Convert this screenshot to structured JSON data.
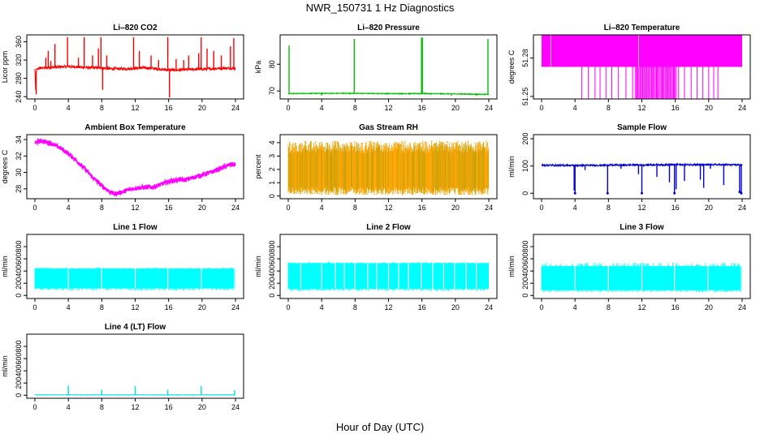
{
  "title": "NWR_150731  1 Hz Diagnostics",
  "xlabel": "Hour of Day (UTC)",
  "chart_data": [
    {
      "id": "co2",
      "type": "line",
      "title": "Li–820 CO2",
      "ylabel": "Licor ppm",
      "color": "#ff0000",
      "xlim": [
        0,
        24
      ],
      "ylim": [
        235,
        375
      ],
      "xticks": [
        "0",
        "4",
        "8",
        "12",
        "16",
        "20",
        "24"
      ],
      "yticks": [
        "240",
        "280",
        "320",
        "360"
      ],
      "x": [
        0,
        0.1,
        0.15,
        0.2,
        0.5,
        1,
        2,
        3,
        4,
        5,
        6,
        7,
        8,
        9,
        10,
        11,
        12,
        13,
        14,
        15,
        16,
        17,
        18,
        19,
        20,
        21,
        22,
        23,
        24
      ],
      "y": [
        300,
        245,
        295,
        298,
        302,
        303,
        304,
        305,
        306,
        305,
        304,
        303,
        303,
        301,
        301,
        301,
        302,
        303,
        302,
        300,
        298,
        298,
        299,
        300,
        300,
        301,
        302,
        302,
        302
      ],
      "spikes": [
        {
          "x": 0.15,
          "y": 245
        },
        {
          "x": 1.3,
          "y": 325
        },
        {
          "x": 1.6,
          "y": 340
        },
        {
          "x": 1.9,
          "y": 318
        },
        {
          "x": 2.4,
          "y": 355
        },
        {
          "x": 3.9,
          "y": 370
        },
        {
          "x": 5.2,
          "y": 325
        },
        {
          "x": 5.9,
          "y": 370
        },
        {
          "x": 6.9,
          "y": 330
        },
        {
          "x": 7.6,
          "y": 345
        },
        {
          "x": 7.9,
          "y": 370
        },
        {
          "x": 8.1,
          "y": 255
        },
        {
          "x": 8.6,
          "y": 330
        },
        {
          "x": 11.8,
          "y": 370
        },
        {
          "x": 12.5,
          "y": 340
        },
        {
          "x": 13.9,
          "y": 330
        },
        {
          "x": 14.8,
          "y": 320
        },
        {
          "x": 15.9,
          "y": 370
        },
        {
          "x": 16.1,
          "y": 238
        },
        {
          "x": 16.9,
          "y": 322
        },
        {
          "x": 17.8,
          "y": 320
        },
        {
          "x": 18.4,
          "y": 330
        },
        {
          "x": 19.6,
          "y": 335
        },
        {
          "x": 19.9,
          "y": 370
        },
        {
          "x": 20.6,
          "y": 345
        },
        {
          "x": 21.4,
          "y": 340
        },
        {
          "x": 22.3,
          "y": 330
        },
        {
          "x": 23.4,
          "y": 350
        },
        {
          "x": 23.8,
          "y": 368
        }
      ]
    },
    {
      "id": "pressure",
      "type": "line",
      "title": "Li–820 Pressure",
      "ylabel": "kPa",
      "color": "#00c000",
      "xlim": [
        0,
        24
      ],
      "ylim": [
        67,
        91
      ],
      "xticks": [
        "0",
        "4",
        "8",
        "12",
        "16",
        "20",
        "24"
      ],
      "yticks": [
        "70",
        "80"
      ],
      "x": [
        0,
        0.3,
        4,
        8,
        12,
        16,
        20,
        22,
        24
      ],
      "y": [
        69,
        69,
        69.1,
        69.1,
        69,
        69,
        68.9,
        68.8,
        68.7
      ],
      "spikes": [
        {
          "x": 0.1,
          "y": 87
        },
        {
          "x": 7.9,
          "y": 89.5
        },
        {
          "x": 15.95,
          "y": 90
        },
        {
          "x": 16.05,
          "y": 90
        },
        {
          "x": 23.9,
          "y": 89.5
        },
        {
          "x": 4,
          "y": 68.3
        },
        {
          "x": 19.5,
          "y": 68.2
        },
        {
          "x": 22.5,
          "y": 68.1
        }
      ]
    },
    {
      "id": "temperature",
      "type": "area",
      "title": "Li–820 Temperature",
      "ylabel": "degrees C",
      "color": "#ff00ff",
      "xlim": [
        0,
        24
      ],
      "ylim": [
        51.248,
        51.298
      ],
      "xticks": [
        "0",
        "4",
        "8",
        "12",
        "16",
        "20",
        "24"
      ],
      "yticks": [
        "51.25",
        "51.28"
      ],
      "band": [
        51.273,
        51.298
      ],
      "drops": [
        4.8,
        5.6,
        6.4,
        7.0,
        7.7,
        8.4,
        9.2,
        10.1,
        10.9,
        11.5,
        12.1,
        12.6,
        13.2,
        13.8,
        14.5,
        15.1,
        15.8,
        16.4,
        17.1,
        17.9,
        18.6,
        19.3,
        20.0,
        20.6,
        21.1
      ],
      "gaps": [
        1.1,
        11.6
      ]
    },
    {
      "id": "ambient",
      "type": "line",
      "title": "Ambient Box Temperature",
      "ylabel": "degrees C",
      "color": "#ff00ff",
      "xlim": [
        0,
        24
      ],
      "ylim": [
        26.8,
        34.6
      ],
      "xticks": [
        "0",
        "4",
        "8",
        "12",
        "16",
        "20",
        "24"
      ],
      "yticks": [
        "28",
        "30",
        "32",
        "34"
      ],
      "x": [
        0,
        0.5,
        1,
        2,
        3,
        4,
        5,
        6,
        7,
        8,
        9,
        9.5,
        10,
        11,
        12,
        13,
        14,
        15,
        16,
        17,
        18,
        19,
        20,
        21,
        22,
        23,
        23.5,
        24
      ],
      "y": [
        33.6,
        33.8,
        33.8,
        33.5,
        33,
        32.3,
        31.4,
        30.4,
        29.3,
        28.4,
        27.6,
        27.4,
        27.5,
        27.8,
        28.1,
        28.2,
        28.2,
        28.5,
        28.9,
        29.1,
        29.1,
        29.4,
        29.7,
        30.0,
        30.4,
        30.8,
        31.0,
        30.9
      ]
    },
    {
      "id": "rh",
      "type": "area",
      "title": "Gas Stream RH",
      "ylabel": "percent",
      "color": "#ffa500",
      "color2": "#c8a000",
      "xlim": [
        0,
        24
      ],
      "ylim": [
        -0.2,
        4.6
      ],
      "xticks": [
        "0",
        "4",
        "8",
        "12",
        "16",
        "20",
        "24"
      ],
      "yticks": [
        "0",
        "1",
        "2",
        "3",
        "4"
      ],
      "band": [
        0.1,
        4.1
      ]
    },
    {
      "id": "sample",
      "type": "line",
      "title": "Sample Flow",
      "ylabel": "ml/min",
      "color": "#0000cc",
      "xlim": [
        0,
        24
      ],
      "ylim": [
        -20,
        215
      ],
      "xticks": [
        "0",
        "4",
        "8",
        "12",
        "16",
        "20",
        "24"
      ],
      "yticks": [
        "0",
        "100",
        "200"
      ],
      "x": [
        0,
        4,
        8,
        12,
        16,
        20,
        24
      ],
      "y": [
        103,
        102,
        103,
        104,
        105,
        105,
        104
      ],
      "spikes": [
        {
          "x": 3.9,
          "y": 10
        },
        {
          "x": 4.0,
          "y": 0
        },
        {
          "x": 5.2,
          "y": 85
        },
        {
          "x": 7.9,
          "y": 0
        },
        {
          "x": 9.5,
          "y": 90
        },
        {
          "x": 11.6,
          "y": 70
        },
        {
          "x": 12.0,
          "y": 0
        },
        {
          "x": 13.8,
          "y": 60
        },
        {
          "x": 15.3,
          "y": 40
        },
        {
          "x": 15.9,
          "y": 0
        },
        {
          "x": 16.1,
          "y": 15
        },
        {
          "x": 17.1,
          "y": 45
        },
        {
          "x": 19.0,
          "y": 50
        },
        {
          "x": 19.4,
          "y": 20
        },
        {
          "x": 20.2,
          "y": 90
        },
        {
          "x": 21.8,
          "y": 30
        },
        {
          "x": 23.7,
          "y": 5
        },
        {
          "x": 23.9,
          "y": 0
        }
      ]
    },
    {
      "id": "line1",
      "type": "area",
      "title": "Line 1 Flow",
      "ylabel": "ml/min",
      "color": "#00ffff",
      "xlim": [
        0,
        24
      ],
      "ylim": [
        -50,
        1000
      ],
      "xticks": [
        "0",
        "4",
        "8",
        "12",
        "16",
        "20",
        "24"
      ],
      "yticks": [
        "0",
        "200",
        "400",
        "600",
        "800"
      ],
      "band": [
        120,
        440
      ],
      "gaps": [
        4.0,
        8.0,
        12.0,
        15.9,
        19.9,
        23.9
      ]
    },
    {
      "id": "line2",
      "type": "area",
      "title": "Line 2 Flow",
      "ylabel": "ml/min",
      "color": "#00ffff",
      "xlim": [
        0,
        24
      ],
      "ylim": [
        -50,
        1000
      ],
      "xticks": [
        "0",
        "4",
        "8",
        "12",
        "16",
        "20",
        "24"
      ],
      "yticks": [
        "0",
        "200",
        "400",
        "600",
        "800"
      ],
      "band": [
        110,
        530
      ],
      "gaps": [
        1.5,
        4.0,
        5.6,
        6.7,
        8.0,
        9.5,
        10.6,
        12.0,
        13.2,
        14.4,
        15.9,
        17.3,
        18.6,
        19.9,
        21.3,
        22.5
      ]
    },
    {
      "id": "line3",
      "type": "area",
      "title": "Line 3 Flow",
      "ylabel": "ml/min",
      "color": "#00ffff",
      "xlim": [
        0,
        24
      ],
      "ylim": [
        -50,
        1000
      ],
      "xticks": [
        "0",
        "4",
        "8",
        "12",
        "16",
        "20",
        "24"
      ],
      "yticks": [
        "0",
        "200",
        "400",
        "600",
        "800"
      ],
      "band": [
        90,
        480
      ],
      "gaps": [
        4.0,
        8.0,
        12.0,
        15.9,
        19.9,
        23.9
      ]
    },
    {
      "id": "line4",
      "type": "line",
      "title": "Line 4 (LT) Flow",
      "ylabel": "ml/min",
      "color": "#00dddd",
      "xlim": [
        0,
        24
      ],
      "ylim": [
        -50,
        1000
      ],
      "xticks": [
        "0",
        "4",
        "8",
        "12",
        "16",
        "20",
        "24"
      ],
      "yticks": [
        "0",
        "200",
        "400",
        "600",
        "800"
      ],
      "x": [
        0,
        24
      ],
      "y": [
        5,
        5
      ],
      "spikes": [
        {
          "x": 4.0,
          "y": 160
        },
        {
          "x": 8.0,
          "y": 90
        },
        {
          "x": 12.0,
          "y": 150
        },
        {
          "x": 15.9,
          "y": 90
        },
        {
          "x": 19.9,
          "y": 150
        },
        {
          "x": 23.9,
          "y": 80
        }
      ]
    }
  ]
}
